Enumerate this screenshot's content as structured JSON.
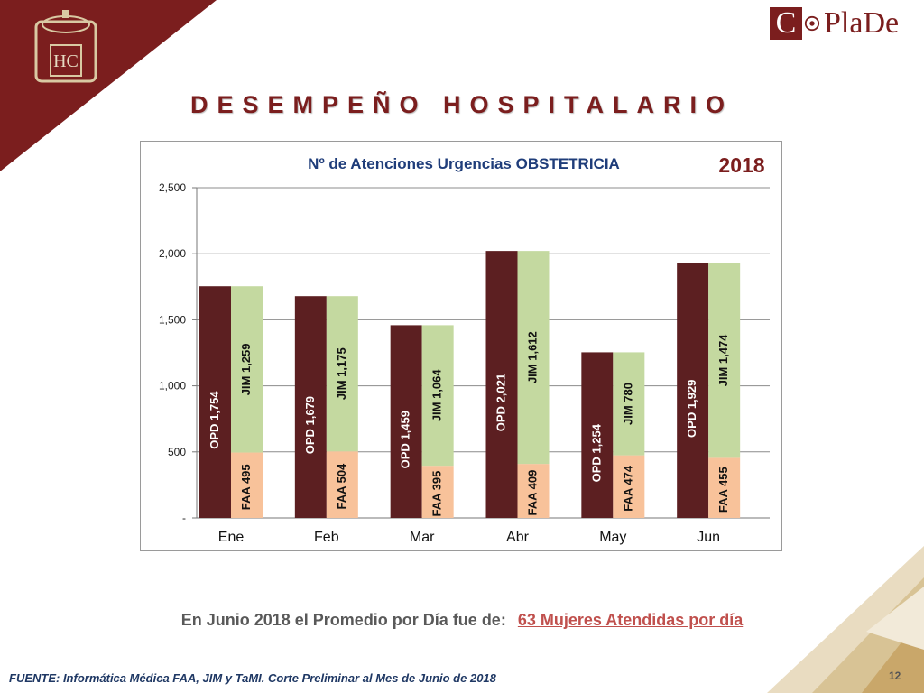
{
  "header": {
    "title": "DESEMPEÑO HOSPITALARIO",
    "logo_letter": "C",
    "logo_rest": "PlaDe",
    "seal_letters": "HC"
  },
  "colors": {
    "maroon": "#7b1e1e",
    "opd": "#5c1f21",
    "jim": "#c4d9a0",
    "faa": "#f8c29a",
    "gold": "#c9a76a"
  },
  "chart_data": {
    "type": "bar",
    "title": "Nº de Atenciones Urgencias OBSTETRICIA",
    "year_label": "2018",
    "categories": [
      "Ene",
      "Feb",
      "Mar",
      "Abr",
      "May",
      "Jun"
    ],
    "ylim": [
      0,
      2500
    ],
    "yticks": [
      0,
      500,
      1000,
      1500,
      2000,
      2500
    ],
    "ytick_labels": [
      "-",
      "500",
      "1,000",
      "1,500",
      "2,000",
      "2,500"
    ],
    "grid": true,
    "series": [
      {
        "name": "OPD",
        "values": [
          1754,
          1679,
          1459,
          2021,
          1254,
          1929
        ],
        "labels": [
          "OPD  1,754",
          "OPD  1,679",
          "OPD  1,459",
          "OPD  2,021",
          "OPD  1,254",
          "OPD  1,929"
        ]
      },
      {
        "name": "FAA",
        "values": [
          495,
          504,
          395,
          409,
          474,
          455
        ],
        "labels": [
          "FAA  495",
          "FAA  504",
          "FAA  395",
          "FAA  409",
          "FAA  474",
          "FAA  455"
        ]
      },
      {
        "name": "JIM",
        "values": [
          1259,
          1175,
          1064,
          1612,
          780,
          1474
        ],
        "labels": [
          "JIM  1,259",
          "JIM  1,175",
          "JIM  1,064",
          "JIM  1,612",
          "JIM  780",
          "JIM  1,474"
        ]
      }
    ]
  },
  "footnote": {
    "text": "En Junio 2018 el Promedio por Día fue de:",
    "highlight": "63  Mujeres Atendidas por día"
  },
  "source": "FUENTE: Informática Médica  FAA, JIM y TaMI. Corte Preliminar al Mes de Junio de 2018",
  "page_number": "12"
}
